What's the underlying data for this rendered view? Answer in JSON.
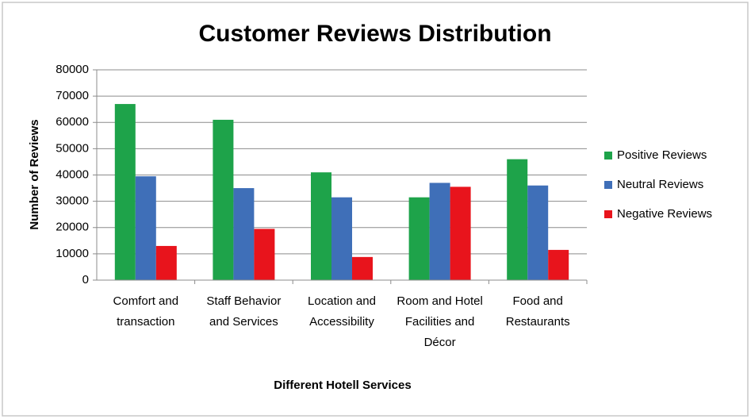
{
  "chart_data": {
    "type": "bar",
    "title": "Customer Reviews Distribution",
    "x_label": "Different Hotell Services",
    "y_label": "Number of Reviews",
    "categories": [
      "Comfort and transaction",
      "Staff Behavior and Services",
      "Location and Accessibility",
      "Room and Hotel Facilities and Décor",
      "Food and Restaurants"
    ],
    "series": [
      {
        "name": "Positive Reviews",
        "color": "#1ea34a",
        "values": [
          67000,
          61000,
          41000,
          31500,
          46000
        ]
      },
      {
        "name": "Neutral Reviews",
        "color": "#3f6fb8",
        "values": [
          39500,
          35000,
          31500,
          37000,
          36000
        ]
      },
      {
        "name": "Negative Reviews",
        "color": "#e8141c",
        "values": [
          13000,
          19500,
          8800,
          35500,
          11500
        ]
      }
    ],
    "ylim": [
      0,
      80000
    ],
    "yticks": [
      0,
      10000,
      20000,
      30000,
      40000,
      50000,
      60000,
      70000,
      80000
    ],
    "grid": true,
    "legend": "right"
  }
}
